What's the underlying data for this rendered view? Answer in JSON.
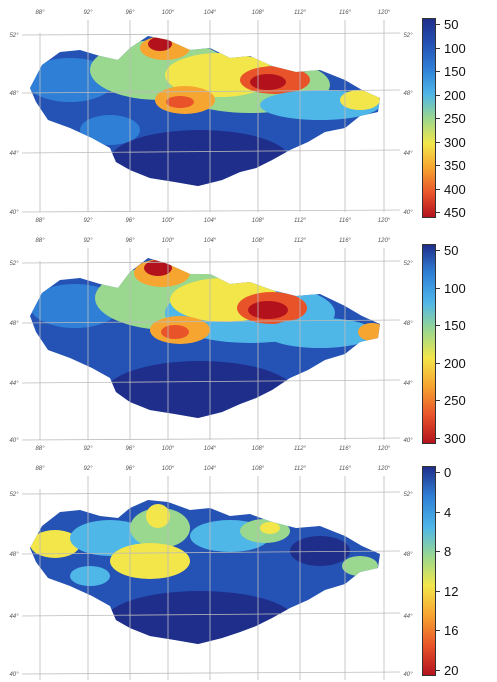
{
  "panels": [
    {
      "id": "top",
      "lon_labels_top": [
        "88°",
        "92°",
        "96°",
        "100°",
        "104°",
        "108°",
        "112°",
        "116°",
        "120°"
      ],
      "lon_labels_bottom": [
        "88°",
        "92°",
        "96°",
        "100°",
        "104°",
        "108°",
        "112°",
        "116°",
        "120°"
      ],
      "lat_labels_left": [
        "52°",
        "48°",
        "44°",
        "40°"
      ],
      "lat_labels_right": [
        "52°",
        "48°",
        "44°",
        "40°"
      ],
      "legend": {
        "labels": [
          "50",
          "100",
          "150",
          "200",
          "250",
          "300",
          "350",
          "400",
          "450"
        ],
        "colors": [
          "#1f2e8a",
          "#2452b5",
          "#2f7fd6",
          "#4fb6e8",
          "#9ad78f",
          "#f2e64a",
          "#f7a531",
          "#e8532a",
          "#b3121d"
        ]
      }
    },
    {
      "id": "middle",
      "lon_labels_top": [
        "88°",
        "92°",
        "96°",
        "100°",
        "104°",
        "108°",
        "112°",
        "116°",
        "120°"
      ],
      "lon_labels_bottom": [
        "88°",
        "92°",
        "96°",
        "100°",
        "104°",
        "108°",
        "112°",
        "116°",
        "120°"
      ],
      "lat_labels_left": [
        "52°",
        "48°",
        "44°",
        "40°"
      ],
      "lat_labels_right": [
        "52°",
        "48°",
        "44°",
        "40°"
      ],
      "legend": {
        "labels": [
          "50",
          "100",
          "150",
          "200",
          "250",
          "300"
        ],
        "colors": [
          "#1f2e8a",
          "#2f7fd6",
          "#4fb6e8",
          "#9ad78f",
          "#f2e64a",
          "#f7a531",
          "#e8532a",
          "#b3121d"
        ]
      }
    },
    {
      "id": "bottom",
      "lon_labels_top": [
        "88°",
        "92°",
        "96°",
        "100°",
        "104°",
        "108°",
        "112°",
        "116°",
        "120°"
      ],
      "lat_labels_left": [
        "52°",
        "48°",
        "44°",
        "40°"
      ],
      "lat_labels_right": [
        "52°",
        "48°",
        "44°",
        "40°"
      ],
      "legend": {
        "labels": [
          "0",
          "4",
          "8",
          "12",
          "16",
          "20"
        ],
        "colors": [
          "#1f2e8a",
          "#2f7fd6",
          "#4fb6e8",
          "#9ad78f",
          "#f2e64a",
          "#f7a531",
          "#e8532a",
          "#b3121d"
        ]
      }
    }
  ],
  "colors": {
    "deep_blue": "#1f3a9a",
    "mid_blue": "#2f6ad0",
    "light_blue": "#4fb6e8",
    "green": "#9ad78f",
    "yellow": "#f2e64a",
    "orange": "#f7a531",
    "red": "#e8532a",
    "dark_red": "#b3121d"
  }
}
